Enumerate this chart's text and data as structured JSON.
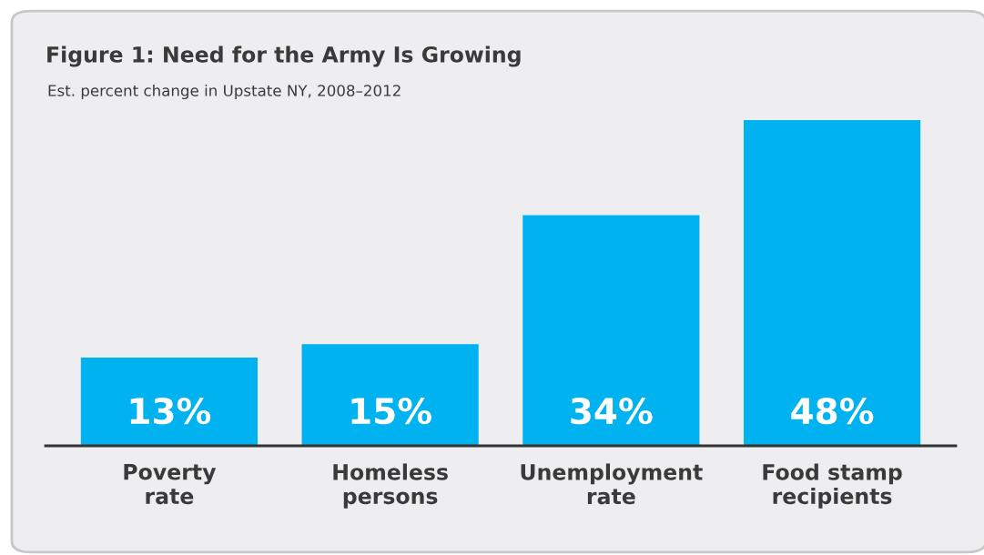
{
  "chart_data": {
    "type": "bar",
    "title": "Figure 1: Need for the Army Is Growing",
    "subtitle": "Est. percent change in Upstate NY, 2008–2012",
    "categories": [
      "Poverty\nrate",
      "Homeless\npersons",
      "Unemployment\nrate",
      "Food stamp\nrecipients"
    ],
    "values": [
      13,
      15,
      34,
      48
    ],
    "color": "#00b2ef",
    "value_labels": [
      "13%",
      "15%",
      "34%",
      "48%"
    ],
    "grid": false,
    "legend": false
  }
}
